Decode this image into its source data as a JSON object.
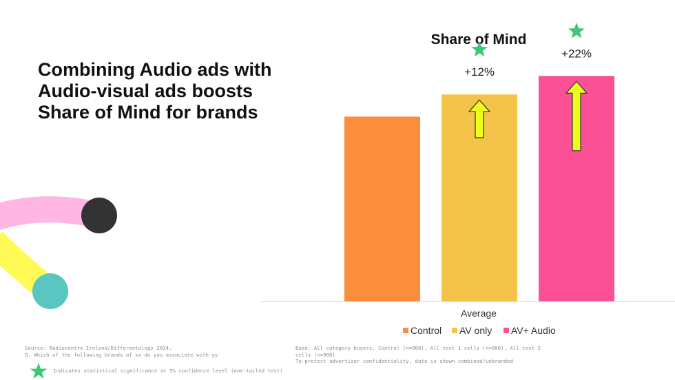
{
  "headline": {
    "lines": [
      "Combining Audio ads with",
      "Audio-visual ads boosts",
      "Share of Mind for brands"
    ]
  },
  "colors": {
    "control": "#fb8d3d",
    "av_only": "#f4c34a",
    "av_audio": "#fb4f96",
    "arrow": "#ecff1a",
    "star": "#3fc773",
    "deco_pink": "#ffb6e3",
    "deco_yellow": "#fffa55",
    "deco_teal": "#59c6c0",
    "deco_dark": "#333333"
  },
  "chart_data": {
    "type": "bar",
    "title": "Share of Mind",
    "categories": [
      "Average"
    ],
    "series": [
      {
        "name": "Control",
        "values": [
          100
        ]
      },
      {
        "name": "AV only",
        "values": [
          112
        ]
      },
      {
        "name": "AV+ Audio",
        "values": [
          122
        ]
      }
    ],
    "annotations": [
      "",
      "+12%",
      "+22%"
    ],
    "significant": [
      false,
      true,
      true
    ],
    "ylim": [
      0,
      140
    ],
    "grid": false,
    "legend": "bottom"
  },
  "footnotes": {
    "source": "Source: Radiocentre Ireland/Differentology 2024.",
    "question": "Q. Which of the following brands of xx do you associate with yy",
    "significance": "Indicates statistical significance at 5% confidence level (one-tailed test)",
    "base_line1": "Base: All category buyers, Control (n=900), All test 1 cells (n=900), All test 2",
    "base_line2": "cells (n=900)",
    "confidentiality": "To protect advertiser confidentiality, data is shown combined/unbranded"
  }
}
